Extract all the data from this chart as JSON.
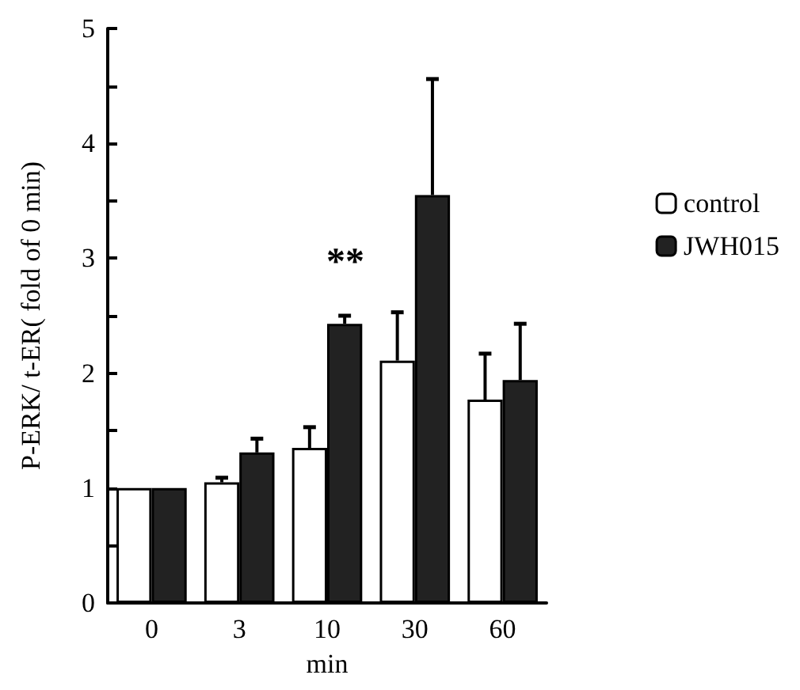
{
  "chart_data": {
    "type": "bar",
    "xlabel": "min",
    "ylabel": "P-ERK/ t-ER( fold of 0 min)",
    "categories": [
      "0",
      "3",
      "10",
      "30",
      "60"
    ],
    "series": [
      {
        "name": "control",
        "color": "#ffffff",
        "values": [
          1.0,
          1.05,
          1.35,
          2.11,
          1.77
        ],
        "errors": [
          null,
          [
            1.05,
            1.09
          ],
          [
            1.35,
            1.53
          ],
          [
            2.11,
            2.53
          ],
          [
            1.77,
            2.17
          ]
        ]
      },
      {
        "name": "JWH015",
        "color": "#222222",
        "values": [
          1.0,
          1.31,
          2.43,
          3.55,
          1.94
        ],
        "errors": [
          null,
          [
            1.31,
            1.43
          ],
          [
            2.43,
            2.5
          ],
          [
            3.55,
            4.56
          ],
          [
            1.94,
            2.43
          ]
        ]
      }
    ],
    "ylim": [
      0,
      5
    ],
    "yticks": [
      0,
      {
        "value": 0.5,
        "label": null
      },
      1,
      {
        "value": 1.5,
        "label": null
      },
      2,
      {
        "value": 2.5,
        "label": null
      },
      3,
      {
        "value": 3.5,
        "label": null
      },
      4,
      {
        "value": 4.5,
        "label": null
      },
      5
    ],
    "annotations": [
      "**"
    ],
    "grid": false,
    "legend": "top right"
  }
}
